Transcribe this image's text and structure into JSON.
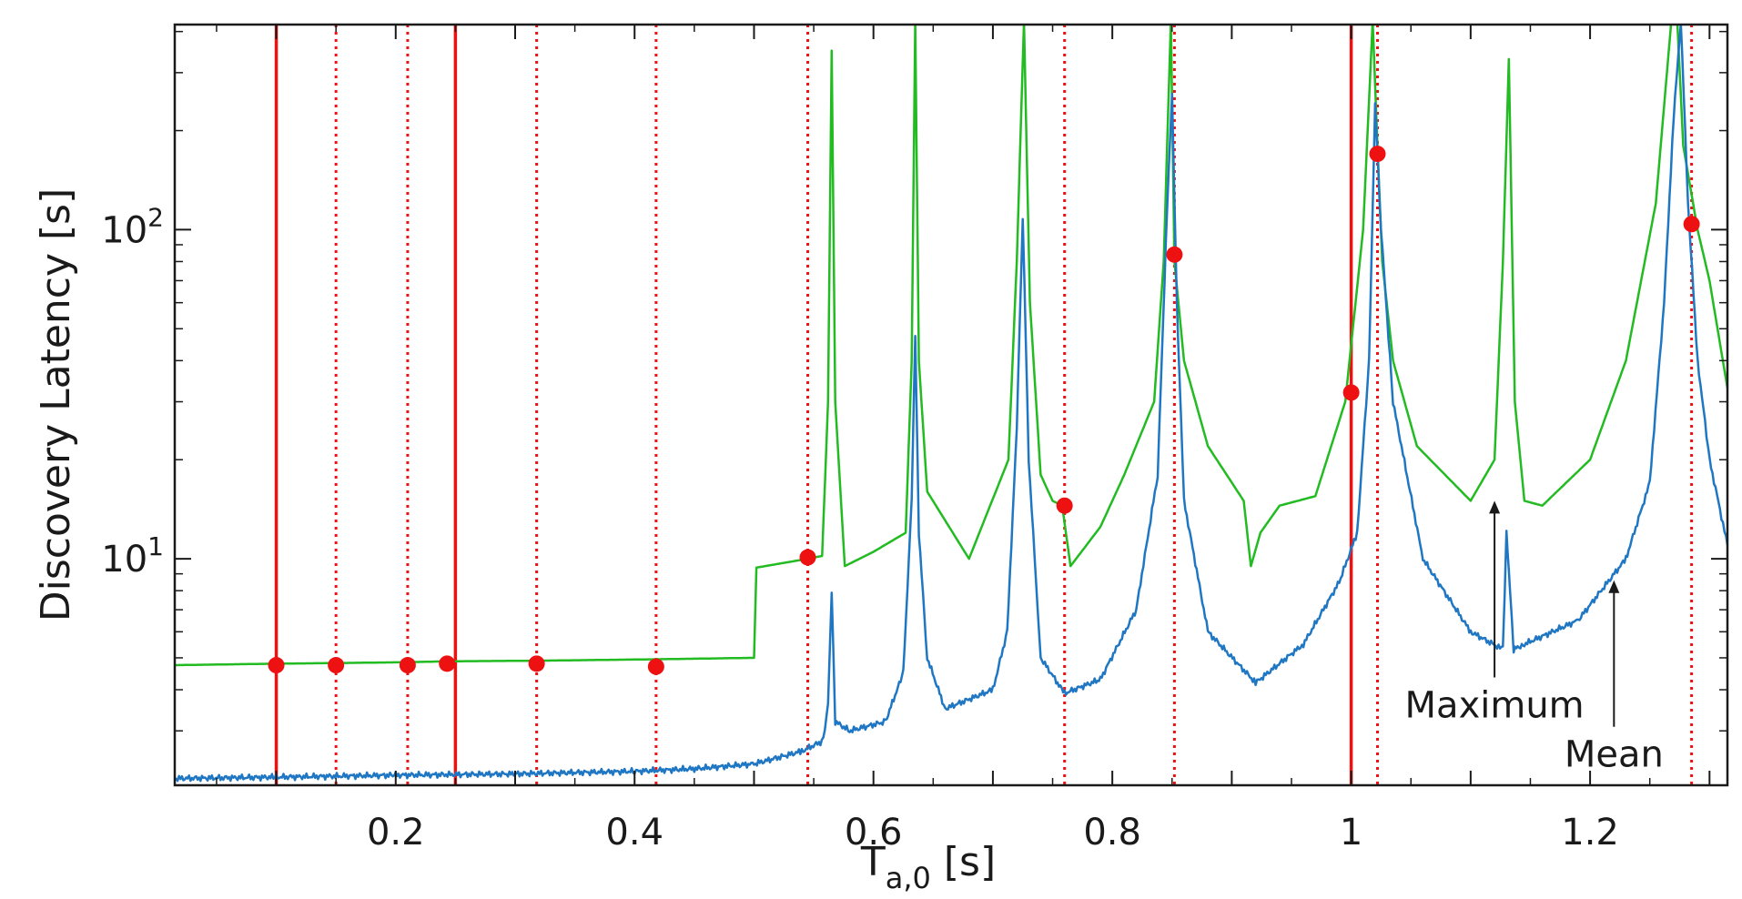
{
  "chart_data": {
    "type": "line",
    "title": "",
    "xlabel": "T",
    "xlabel_sub": "a,0",
    "xlabel_unit": " [s]",
    "ylabel": "Discovery Latency [s]",
    "y_scale": "log",
    "xlim": [
      0.015,
      1.315
    ],
    "ylim": [
      2.05,
      420
    ],
    "grid": false,
    "x_ticks": [
      {
        "value": 0.2,
        "label": "0.2"
      },
      {
        "value": 0.4,
        "label": "0.4"
      },
      {
        "value": 0.6,
        "label": "0.6"
      },
      {
        "value": 0.8,
        "label": "0.8"
      },
      {
        "value": 1.0,
        "label": "1"
      },
      {
        "value": 1.2,
        "label": "1.2"
      }
    ],
    "y_ticks": [
      {
        "value": 10,
        "label": "10",
        "exp": "1"
      },
      {
        "value": 100,
        "label": "10",
        "exp": "2"
      }
    ],
    "colors": {
      "maximum": "#22bb22",
      "mean": "#1f77c4",
      "markers": "#ee1111"
    },
    "series": [
      {
        "key": "maximum",
        "x": [
          0.015,
          0.1,
          0.15,
          0.21,
          0.243,
          0.318,
          0.418,
          0.5,
          0.502,
          0.545,
          0.557,
          0.562,
          0.565,
          0.568,
          0.576,
          0.6,
          0.627,
          0.632,
          0.635,
          0.638,
          0.645,
          0.68,
          0.713,
          0.72,
          0.726,
          0.731,
          0.74,
          0.75,
          0.758,
          0.765,
          0.79,
          0.81,
          0.835,
          0.843,
          0.849,
          0.852,
          0.86,
          0.88,
          0.91,
          0.916,
          0.924,
          0.94,
          0.97,
          0.995,
          1.01,
          1.018,
          1.022,
          1.026,
          1.035,
          1.055,
          1.1,
          1.12,
          1.127,
          1.132,
          1.137,
          1.145,
          1.16,
          1.2,
          1.23,
          1.255,
          1.268,
          1.273,
          1.278,
          1.29,
          1.3,
          1.315
        ],
        "y": [
          4.75,
          4.8,
          4.82,
          4.85,
          4.88,
          4.9,
          4.95,
          5.0,
          9.4,
          10.0,
          10.2,
          30,
          350,
          30,
          9.5,
          10.5,
          12.0,
          40,
          430,
          40,
          16.0,
          10.0,
          20.0,
          80,
          430,
          60,
          18.0,
          15.0,
          14.5,
          9.5,
          12.5,
          18.0,
          30.0,
          80,
          430,
          80,
          40.0,
          22.0,
          15.0,
          9.5,
          12.0,
          14.5,
          15.5,
          30.0,
          100,
          430,
          180,
          80,
          40.0,
          22.0,
          15.0,
          20.0,
          80,
          330,
          30,
          15.0,
          14.5,
          20.0,
          40.0,
          120,
          430,
          430,
          180,
          100,
          70,
          33
        ]
      },
      {
        "key": "mean",
        "x": [
          0.015,
          0.1,
          0.2,
          0.3,
          0.4,
          0.45,
          0.5,
          0.54,
          0.558,
          0.562,
          0.565,
          0.568,
          0.58,
          0.61,
          0.625,
          0.632,
          0.635,
          0.638,
          0.645,
          0.66,
          0.7,
          0.712,
          0.72,
          0.725,
          0.73,
          0.74,
          0.76,
          0.79,
          0.82,
          0.838,
          0.846,
          0.85,
          0.854,
          0.86,
          0.88,
          0.92,
          0.96,
          0.99,
          1.005,
          1.015,
          1.02,
          1.025,
          1.035,
          1.06,
          1.1,
          1.127,
          1.13,
          1.133,
          1.136,
          1.145,
          1.19,
          1.23,
          1.25,
          1.262,
          1.27,
          1.276,
          1.282,
          1.29,
          1.3,
          1.315
        ],
        "y": [
          2.15,
          2.17,
          2.2,
          2.22,
          2.26,
          2.3,
          2.38,
          2.6,
          2.8,
          3.6,
          8.0,
          3.2,
          3.0,
          3.2,
          4.5,
          15,
          48,
          12,
          5.0,
          3.5,
          4.0,
          6.0,
          25,
          110,
          20,
          5.0,
          3.9,
          4.3,
          7.0,
          18,
          120,
          260,
          60,
          15,
          6.0,
          4.2,
          5.5,
          8.5,
          12,
          40,
          240,
          100,
          30,
          10,
          6.0,
          5.3,
          12,
          8.0,
          5.3,
          5.5,
          6.5,
          10,
          17,
          60,
          220,
          430,
          120,
          40,
          20,
          11
        ]
      }
    ],
    "vlines": [
      {
        "x": 0.1,
        "style": "solid"
      },
      {
        "x": 0.15,
        "style": "dotted"
      },
      {
        "x": 0.21,
        "style": "dotted"
      },
      {
        "x": 0.25,
        "style": "solid"
      },
      {
        "x": 0.318,
        "style": "dotted"
      },
      {
        "x": 0.418,
        "style": "dotted"
      },
      {
        "x": 0.545,
        "style": "dotted"
      },
      {
        "x": 0.76,
        "style": "dotted"
      },
      {
        "x": 0.852,
        "style": "dotted"
      },
      {
        "x": 1.0,
        "style": "solid"
      },
      {
        "x": 1.022,
        "style": "dotted"
      },
      {
        "x": 1.285,
        "style": "dotted"
      }
    ],
    "markers": [
      {
        "x": 0.1,
        "y": 4.75
      },
      {
        "x": 0.15,
        "y": 4.75
      },
      {
        "x": 0.21,
        "y": 4.75
      },
      {
        "x": 0.243,
        "y": 4.8
      },
      {
        "x": 0.318,
        "y": 4.8
      },
      {
        "x": 0.418,
        "y": 4.7
      },
      {
        "x": 0.545,
        "y": 10.1
      },
      {
        "x": 0.76,
        "y": 14.5
      },
      {
        "x": 0.852,
        "y": 84
      },
      {
        "x": 1.0,
        "y": 32
      },
      {
        "x": 1.022,
        "y": 170
      },
      {
        "x": 1.285,
        "y": 104
      }
    ],
    "annotations": [
      {
        "text": "Maximum",
        "label_x": 1.12,
        "label_y": 3.6,
        "point_x": 1.12,
        "point_y": 15.0
      },
      {
        "text": "Mean",
        "label_x": 1.22,
        "label_y": 2.55,
        "point_x": 1.22,
        "point_y": 8.6
      }
    ]
  }
}
